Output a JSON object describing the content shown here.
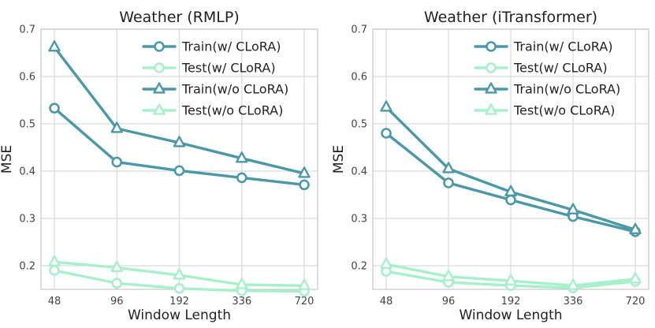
{
  "chart_data": [
    {
      "type": "line",
      "title": "Weather (RMLP)",
      "xlabel": "Window Length",
      "ylabel": "MSE",
      "categories": [
        "48",
        "96",
        "192",
        "336",
        "720"
      ],
      "ylim": [
        0.15,
        0.7
      ],
      "yticks": [
        "0.2",
        "0.3",
        "0.4",
        "0.5",
        "0.6",
        "0.7"
      ],
      "ytick_values": [
        0.2,
        0.3,
        0.4,
        0.5,
        0.6,
        0.7
      ],
      "grid": true,
      "legend_position": "top-right",
      "series": [
        {
          "name": "Train(w/ CLoRA)",
          "values": [
            0.533,
            0.419,
            0.401,
            0.386,
            0.371
          ],
          "color": "#4a98a8",
          "marker": "circle"
        },
        {
          "name": "Test(w/ CLoRA)",
          "values": [
            0.19,
            0.163,
            0.152,
            0.147,
            0.146
          ],
          "color": "#a8f0cc",
          "marker": "circle"
        },
        {
          "name": "Train(w/o CLoRA)",
          "values": [
            0.662,
            0.49,
            0.46,
            0.427,
            0.395
          ],
          "color": "#4a98a8",
          "marker": "triangle"
        },
        {
          "name": "Test(w/o CLoRA)",
          "values": [
            0.208,
            0.196,
            0.18,
            0.16,
            0.158
          ],
          "color": "#a8f0cc",
          "marker": "triangle"
        }
      ]
    },
    {
      "type": "line",
      "title": "Weather (iTransformer)",
      "xlabel": "Window Length",
      "ylabel": "MSE",
      "categories": [
        "48",
        "96",
        "192",
        "336",
        "720"
      ],
      "ylim": [
        0.15,
        0.7
      ],
      "yticks": [
        "0.2",
        "0.3",
        "0.4",
        "0.5",
        "0.6",
        "0.7"
      ],
      "ytick_values": [
        0.2,
        0.3,
        0.4,
        0.5,
        0.6,
        0.7
      ],
      "grid": true,
      "legend_position": "top-right",
      "series": [
        {
          "name": "Train(w/ CLoRA)",
          "values": [
            0.48,
            0.375,
            0.339,
            0.304,
            0.272
          ],
          "color": "#4a98a8",
          "marker": "circle"
        },
        {
          "name": "Test(w/ CLoRA)",
          "values": [
            0.188,
            0.165,
            0.158,
            0.153,
            0.167
          ],
          "color": "#a8f0cc",
          "marker": "circle"
        },
        {
          "name": "Train(w/o CLoRA)",
          "values": [
            0.535,
            0.405,
            0.356,
            0.318,
            0.276
          ],
          "color": "#4a98a8",
          "marker": "triangle"
        },
        {
          "name": "Test(w/o CLoRA)",
          "values": [
            0.203,
            0.177,
            0.168,
            0.158,
            0.172
          ],
          "color": "#a8f0cc",
          "marker": "triangle"
        }
      ]
    }
  ]
}
